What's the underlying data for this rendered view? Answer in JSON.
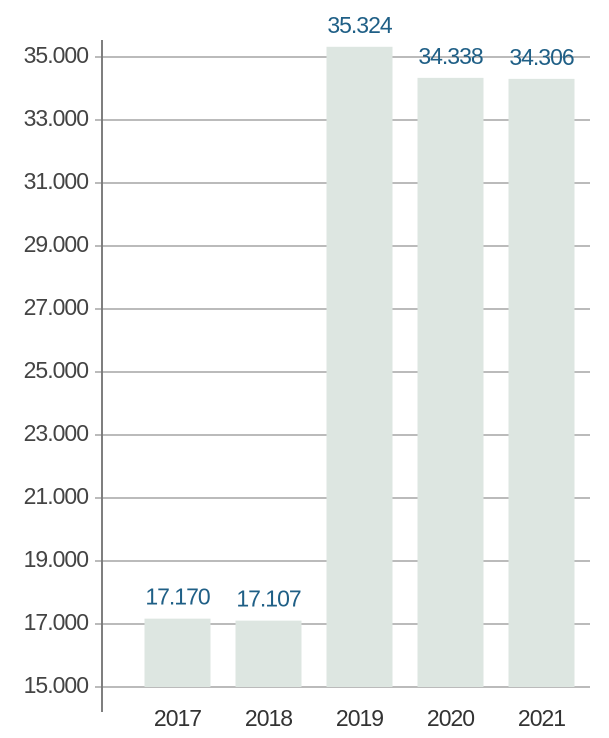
{
  "chart_data": {
    "type": "bar",
    "categories": [
      "2017",
      "2018",
      "2019",
      "2020",
      "2021"
    ],
    "values": [
      17170,
      17107,
      35324,
      34338,
      34306
    ],
    "value_labels": [
      "17.170",
      "17.107",
      "35.324",
      "34.338",
      "34.306"
    ],
    "color": "#dde6e1",
    "ylim": [
      15000,
      35540
    ],
    "yticks": [
      {
        "value": 15000,
        "label": "15.000"
      },
      {
        "value": 17000,
        "label": "17.000"
      },
      {
        "value": 19000,
        "label": "19.000"
      },
      {
        "value": 21000,
        "label": "21.000"
      },
      {
        "value": 23000,
        "label": "23.000"
      },
      {
        "value": 25000,
        "label": "25.000"
      },
      {
        "value": 27000,
        "label": "27.000"
      },
      {
        "value": 29000,
        "label": "29.000"
      },
      {
        "value": 31000,
        "label": "31.000"
      },
      {
        "value": 33000,
        "label": "33.000"
      },
      {
        "value": 35000,
        "label": "35.000"
      }
    ],
    "grid": true
  }
}
